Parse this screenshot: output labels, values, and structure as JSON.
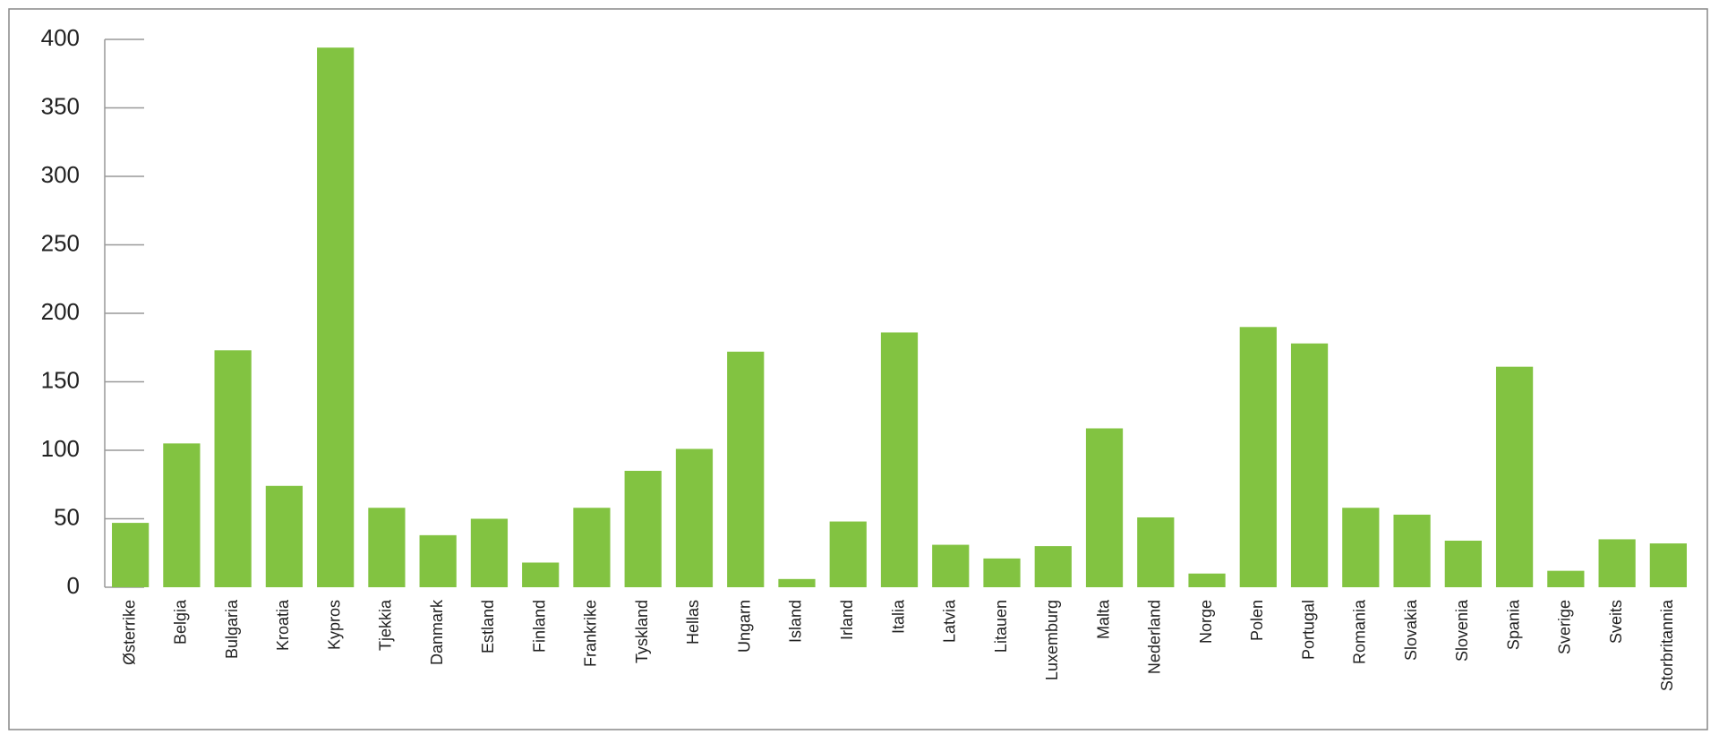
{
  "chart_data": {
    "type": "bar",
    "categories": [
      "Østerrike",
      "Belgia",
      "Bulgaria",
      "Kroatia",
      "Kypros",
      "Tjekkia",
      "Danmark",
      "Estland",
      "Finland",
      "Frankrike",
      "Tyskland",
      "Hellas",
      "Ungarn",
      "Island",
      "Irland",
      "Italia",
      "Latvia",
      "Litauen",
      "Luxemburg",
      "Malta",
      "Nederland",
      "Norge",
      "Polen",
      "Portugal",
      "Romania",
      "Slovakia",
      "Slovenia",
      "Spania",
      "Sverige",
      "Sveits",
      "Storbritannia"
    ],
    "values": [
      47,
      105,
      173,
      74,
      394,
      58,
      38,
      50,
      18,
      58,
      85,
      101,
      172,
      6,
      48,
      186,
      31,
      21,
      30,
      116,
      51,
      10,
      190,
      178,
      58,
      53,
      34,
      161,
      12,
      35,
      32
    ],
    "color": "#82c341",
    "ylim": [
      0,
      400
    ],
    "yticks": [
      0,
      50,
      100,
      150,
      200,
      250,
      300,
      350,
      400
    ]
  }
}
